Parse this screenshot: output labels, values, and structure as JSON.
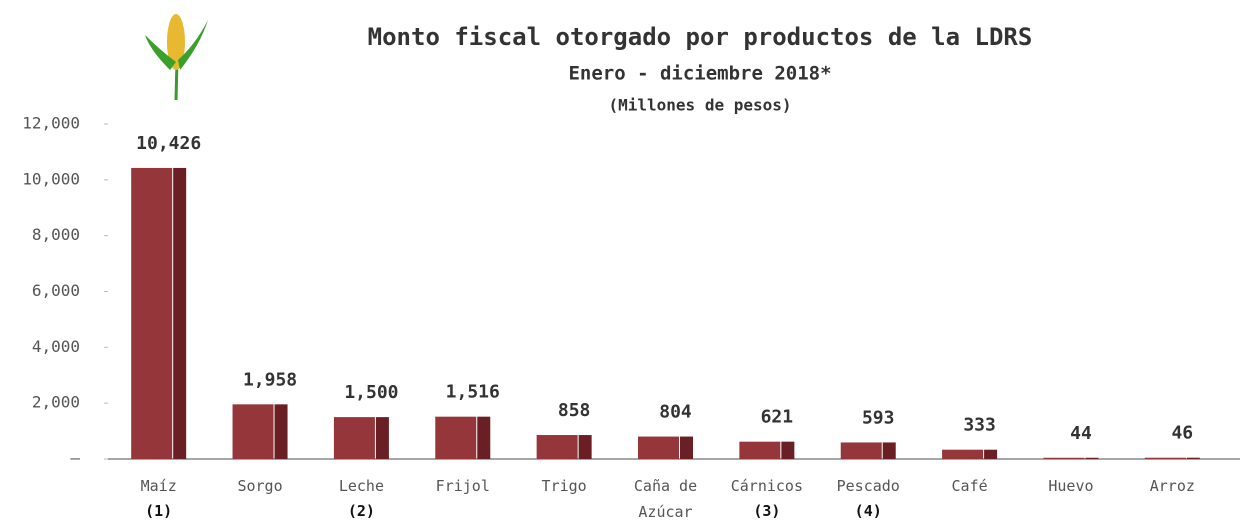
{
  "chart_data": {
    "type": "bar",
    "title": "Monto fiscal otorgado por productos de la LDRS",
    "subtitle": "Enero - diciembre 2018*",
    "unit_label": "(Millones de pesos)",
    "categories": [
      "Maíz",
      "Sorgo",
      "Leche",
      "Frijol",
      "Trigo",
      "Caña de Azúcar",
      "Cárnicos",
      "Pescado",
      "Café",
      "Huevo",
      "Arroz"
    ],
    "notes": [
      "(1)",
      null,
      "(2)",
      null,
      null,
      null,
      "(3)",
      "(4)",
      null,
      null,
      null
    ],
    "values": [
      10426,
      1958,
      1500,
      1516,
      858,
      804,
      621,
      593,
      333,
      44,
      46
    ],
    "value_labels": [
      "10,426",
      "1,958",
      "1,500",
      "1,516",
      "858",
      "804",
      "621",
      "593",
      "333",
      "44",
      "46"
    ],
    "color": "#94363a",
    "ylim": [
      0,
      12000
    ],
    "yticks": [
      {
        "value": 0,
        "label": "–"
      },
      {
        "value": 2000,
        "label": "2,000"
      },
      {
        "value": 4000,
        "label": "4,000"
      },
      {
        "value": 6000,
        "label": "6,000"
      },
      {
        "value": 8000,
        "label": "8,000"
      },
      {
        "value": 10000,
        "label": "10,000"
      },
      {
        "value": 12000,
        "label": "12,000"
      }
    ],
    "grid": false
  }
}
